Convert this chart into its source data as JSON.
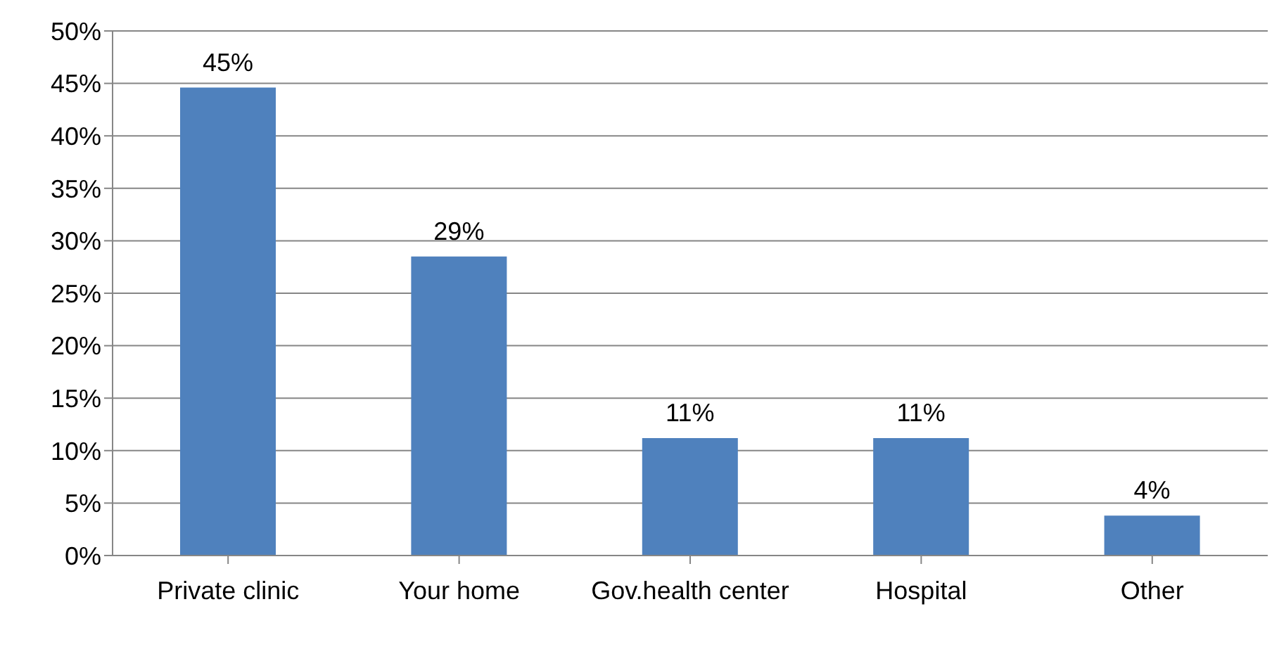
{
  "chart_data": {
    "type": "bar",
    "categories": [
      "Private clinic",
      "Your home",
      "Gov.health center",
      "Hospital",
      "Other"
    ],
    "values": [
      44.6,
      28.5,
      11.2,
      11.2,
      3.8
    ],
    "value_labels": [
      "45%",
      "29%",
      "11%",
      "11%",
      "4%"
    ],
    "color": "#4f81bd",
    "ylim": [
      0,
      50
    ],
    "yticks": [
      {
        "value": 0,
        "label": "0%"
      },
      {
        "value": 5,
        "label": "5%"
      },
      {
        "value": 10,
        "label": "10%"
      },
      {
        "value": 15,
        "label": "15%"
      },
      {
        "value": 20,
        "label": "20%"
      },
      {
        "value": 25,
        "label": "25%"
      },
      {
        "value": 30,
        "label": "30%"
      },
      {
        "value": 35,
        "label": "35%"
      },
      {
        "value": 40,
        "label": "40%"
      },
      {
        "value": 45,
        "label": "45%"
      },
      {
        "value": 50,
        "label": "50%"
      }
    ],
    "grid": "y"
  }
}
